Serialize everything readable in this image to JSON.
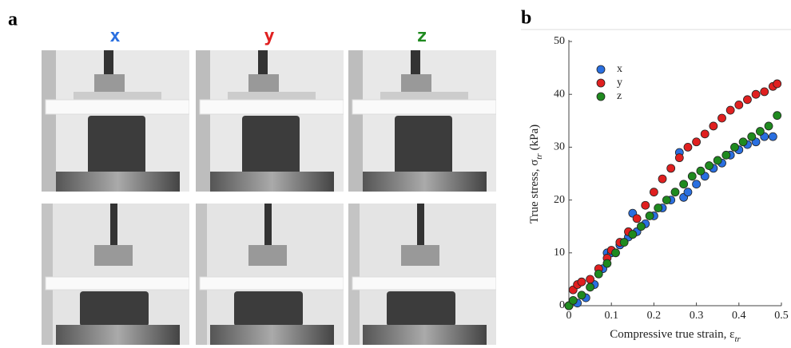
{
  "panel_a": {
    "label": "a",
    "columns": [
      {
        "label": "x",
        "color": "#2a6fe0"
      },
      {
        "label": "y",
        "color": "#e02020"
      },
      {
        "label": "z",
        "color": "#1f8a1f"
      }
    ]
  },
  "chart_data": {
    "type": "scatter",
    "panel_label": "b",
    "xlabel": "Compressive true strain, ε",
    "xlabel_subscript": "tr",
    "ylabel": "True stress, σ",
    "ylabel_subscript": "tr",
    "ylabel_unit": "(kPa)",
    "xlim": [
      0,
      0.5
    ],
    "xticks": [
      0,
      0.1,
      0.2,
      0.3,
      0.4,
      0.5
    ],
    "ylim": [
      0,
      50
    ],
    "yticks": [
      0,
      10,
      20,
      30,
      40,
      50
    ],
    "legend": "upper left",
    "series": [
      {
        "name": "x",
        "color": "#2a6fe0",
        "x": [
          0,
          0.02,
          0.04,
          0.06,
          0.08,
          0.09,
          0.1,
          0.12,
          0.14,
          0.15,
          0.16,
          0.18,
          0.2,
          0.22,
          0.24,
          0.26,
          0.27,
          0.28,
          0.3,
          0.32,
          0.34,
          0.36,
          0.38,
          0.4,
          0.42,
          0.44,
          0.46,
          0.48
        ],
        "values": [
          0,
          0.5,
          1.5,
          4,
          7,
          10,
          10,
          11.5,
          13,
          17.5,
          14,
          15.5,
          17,
          18.5,
          20,
          29,
          20.5,
          21.5,
          23,
          24.5,
          26,
          27,
          28.5,
          29.5,
          30.5,
          31,
          32,
          32
        ]
      },
      {
        "name": "y",
        "color": "#e02020",
        "x": [
          0,
          0.01,
          0.02,
          0.03,
          0.05,
          0.07,
          0.09,
          0.1,
          0.12,
          0.14,
          0.16,
          0.18,
          0.2,
          0.22,
          0.24,
          0.26,
          0.28,
          0.3,
          0.32,
          0.34,
          0.36,
          0.38,
          0.4,
          0.42,
          0.44,
          0.46,
          0.48,
          0.49
        ],
        "values": [
          0,
          3,
          4,
          4.5,
          5,
          7,
          9,
          10.5,
          12,
          14,
          16.5,
          19,
          21.5,
          24,
          26,
          28,
          30,
          31,
          32.5,
          34,
          35.5,
          37,
          38,
          39,
          40,
          40.5,
          41.5,
          42
        ]
      },
      {
        "name": "z",
        "color": "#1f8a1f",
        "x": [
          0,
          0.01,
          0.03,
          0.05,
          0.07,
          0.09,
          0.11,
          0.13,
          0.15,
          0.17,
          0.19,
          0.21,
          0.23,
          0.25,
          0.27,
          0.29,
          0.31,
          0.33,
          0.35,
          0.37,
          0.39,
          0.41,
          0.43,
          0.45,
          0.47,
          0.49
        ],
        "values": [
          0,
          1,
          2,
          3.5,
          6,
          8,
          10,
          12,
          13.5,
          15,
          17,
          18.5,
          20,
          21.5,
          23,
          24.5,
          25.5,
          26.5,
          27.5,
          28.5,
          30,
          31,
          32,
          33,
          34,
          36
        ]
      }
    ]
  }
}
